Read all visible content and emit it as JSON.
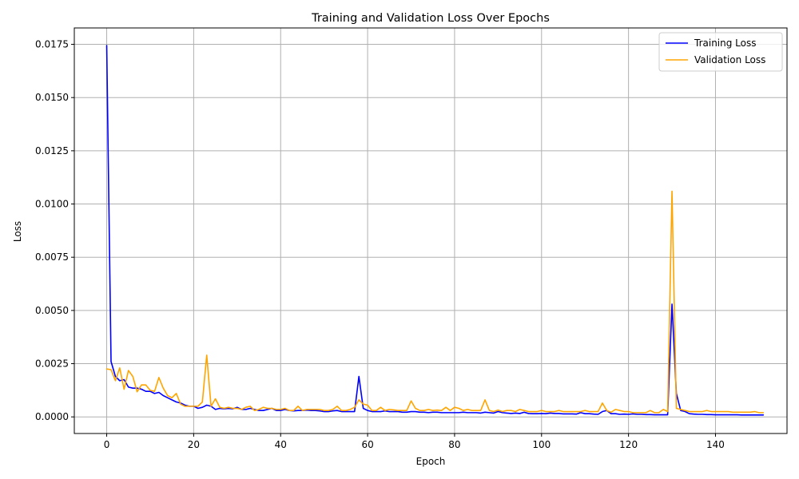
{
  "chart_data": {
    "type": "line",
    "title": "Training and Validation Loss Over Epochs",
    "xlabel": "Epoch",
    "ylabel": "Loss",
    "xlim": [
      -7.45,
      156.45
    ],
    "ylim": [
      -0.00078,
      0.01827
    ],
    "xticks": [
      0,
      20,
      40,
      60,
      80,
      100,
      120,
      140
    ],
    "xtick_labels": [
      "0",
      "20",
      "40",
      "60",
      "80",
      "100",
      "120",
      "140"
    ],
    "yticks": [
      0.0,
      0.0025,
      0.005,
      0.0075,
      0.01,
      0.0125,
      0.015,
      0.0175
    ],
    "ytick_labels": [
      "0.0000",
      "0.0025",
      "0.0050",
      "0.0075",
      "0.0100",
      "0.0125",
      "0.0150",
      "0.0175"
    ],
    "grid": true,
    "legend_position": "top-right",
    "series": [
      {
        "name": "Training Loss",
        "color": "#0000ff",
        "values": [
          0.01745,
          0.0026,
          0.0019,
          0.0017,
          0.00175,
          0.0014,
          0.00135,
          0.00135,
          0.0013,
          0.0012,
          0.0012,
          0.0011,
          0.00115,
          0.001,
          0.0009,
          0.0008,
          0.0007,
          0.00065,
          0.00055,
          0.0005,
          0.0005,
          0.0004,
          0.00045,
          0.00055,
          0.0005,
          0.00035,
          0.0004,
          0.00038,
          0.0004,
          0.00038,
          0.00045,
          0.00035,
          0.00035,
          0.0004,
          0.00035,
          0.0003,
          0.0003,
          0.00035,
          0.0004,
          0.0003,
          0.0003,
          0.00035,
          0.0003,
          0.00028,
          0.0003,
          0.0003,
          0.00032,
          0.0003,
          0.0003,
          0.00028,
          0.00025,
          0.00025,
          0.00028,
          0.0003,
          0.00025,
          0.00025,
          0.00025,
          0.00025,
          0.0019,
          0.0004,
          0.0003,
          0.00025,
          0.00025,
          0.00025,
          0.00028,
          0.00025,
          0.00025,
          0.00025,
          0.00022,
          0.00022,
          0.00025,
          0.00025,
          0.00022,
          0.00022,
          0.0002,
          0.00022,
          0.00022,
          0.0002,
          0.0002,
          0.0002,
          0.0002,
          0.0002,
          0.00022,
          0.0002,
          0.0002,
          0.0002,
          0.00018,
          0.00022,
          0.0002,
          0.00018,
          0.00025,
          0.0002,
          0.00018,
          0.00016,
          0.00018,
          0.00016,
          0.00022,
          0.00016,
          0.00015,
          0.00015,
          0.00016,
          0.00015,
          0.00018,
          0.00016,
          0.00016,
          0.00014,
          0.00014,
          0.00014,
          0.00013,
          0.0002,
          0.00015,
          0.00015,
          0.00013,
          0.00012,
          0.00025,
          0.0003,
          0.00015,
          0.00015,
          0.00012,
          0.00013,
          0.00012,
          0.00014,
          0.00012,
          0.00012,
          0.00011,
          0.00011,
          0.0001,
          0.0001,
          0.0001,
          0.0001,
          0.0053,
          0.0011,
          0.0003,
          0.00025,
          0.00015,
          0.00013,
          0.00012,
          0.00012,
          0.00011,
          0.00011,
          0.0001,
          0.0001,
          0.0001,
          0.0001,
          0.0001,
          0.0001,
          9e-05,
          9e-05,
          9e-05,
          9e-05,
          9e-05,
          9e-05
        ]
      },
      {
        "name": "Validation Loss",
        "color": "#ffa500",
        "values": [
          0.00225,
          0.00222,
          0.0017,
          0.0023,
          0.0013,
          0.00218,
          0.0019,
          0.00118,
          0.0015,
          0.0015,
          0.00125,
          0.0012,
          0.00185,
          0.00135,
          0.001,
          0.0009,
          0.0011,
          0.0006,
          0.0005,
          0.0005,
          0.0005,
          0.0005,
          0.0007,
          0.0029,
          0.0005,
          0.00085,
          0.00045,
          0.0004,
          0.00045,
          0.0004,
          0.0004,
          0.00035,
          0.00045,
          0.0005,
          0.0003,
          0.00035,
          0.00045,
          0.0004,
          0.0004,
          0.00035,
          0.00035,
          0.0004,
          0.0003,
          0.0003,
          0.0005,
          0.0003,
          0.00035,
          0.00035,
          0.00035,
          0.00035,
          0.0003,
          0.0003,
          0.00035,
          0.0005,
          0.0003,
          0.0003,
          0.00035,
          0.00045,
          0.0008,
          0.0006,
          0.00055,
          0.0003,
          0.0003,
          0.00045,
          0.0003,
          0.00035,
          0.00033,
          0.0003,
          0.0003,
          0.0003,
          0.00075,
          0.0004,
          0.0003,
          0.0003,
          0.00035,
          0.0003,
          0.00032,
          0.0003,
          0.00045,
          0.0003,
          0.00045,
          0.0004,
          0.0003,
          0.00035,
          0.0003,
          0.0003,
          0.0003,
          0.0008,
          0.0003,
          0.00025,
          0.00032,
          0.00025,
          0.0003,
          0.0003,
          0.00025,
          0.00035,
          0.0003,
          0.00025,
          0.00025,
          0.00025,
          0.0003,
          0.00025,
          0.00025,
          0.00025,
          0.0003,
          0.00025,
          0.00025,
          0.00025,
          0.00025,
          0.00025,
          0.0003,
          0.00025,
          0.00025,
          0.00025,
          0.00065,
          0.0003,
          0.00022,
          0.00035,
          0.0003,
          0.00025,
          0.00025,
          0.0002,
          0.0002,
          0.0002,
          0.0002,
          0.0003,
          0.0002,
          0.0002,
          0.00035,
          0.00025,
          0.0106,
          0.0004,
          0.00035,
          0.0003,
          0.00025,
          0.00025,
          0.00025,
          0.00025,
          0.0003,
          0.00025,
          0.00025,
          0.00025,
          0.00025,
          0.00025,
          0.00022,
          0.00022,
          0.00022,
          0.00022,
          0.00022,
          0.00025,
          0.0002,
          0.0002
        ]
      }
    ]
  }
}
